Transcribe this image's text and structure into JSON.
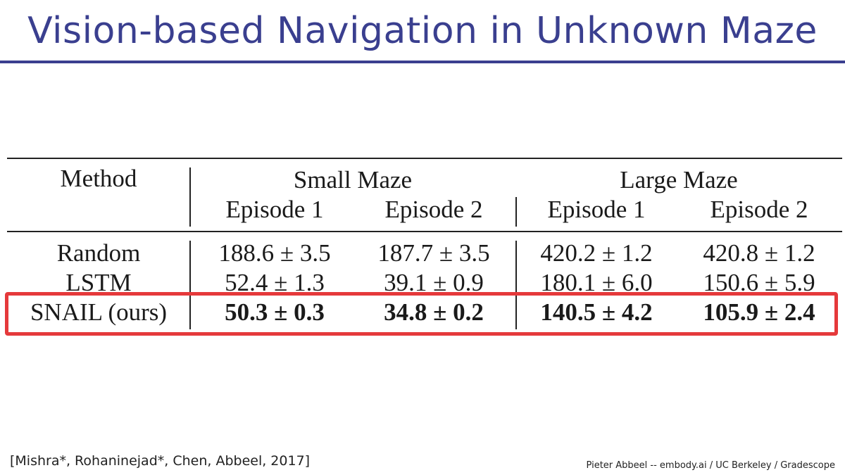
{
  "slide": {
    "title": "Vision-based Navigation in Unknown Maze"
  },
  "table": {
    "header": {
      "method": "Method",
      "groups": [
        "Small Maze",
        "Large Maze"
      ],
      "episodes": [
        "Episode 1",
        "Episode 2",
        "Episode 1",
        "Episode 2"
      ]
    },
    "rows": [
      {
        "method": "Random",
        "values": [
          "188.6 ± 3.5",
          "187.7 ± 3.5",
          "420.2 ± 1.2",
          "420.8 ± 1.2"
        ]
      },
      {
        "method": "LSTM",
        "values": [
          "52.4 ± 1.3",
          "39.1 ± 0.9",
          "180.1 ± 6.0",
          "150.6 ± 5.9"
        ]
      },
      {
        "method": "SNAIL (ours)",
        "values": [
          "50.3 ± 0.3",
          "34.8 ± 0.2",
          "140.5 ± 4.2",
          "105.9 ± 2.4"
        ]
      }
    ],
    "highlight_color": "#e5393b"
  },
  "footer": {
    "citation": "[Mishra*, Rohaninejad*, Chen, Abbeel, 2017]",
    "credit": "Pieter Abbeel -- embody.ai / UC Berkeley / Gradescope"
  },
  "colors": {
    "title": "#3a3f8f",
    "accent": "#e5393b"
  }
}
